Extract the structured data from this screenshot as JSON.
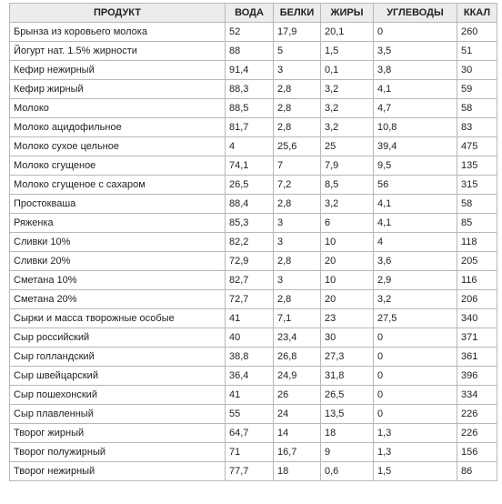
{
  "table": {
    "header": [
      "ПРОДУКТ",
      "ВОДА",
      "БЕЛКИ",
      "ЖИРЫ",
      "УГЛЕВОДЫ",
      "ККАЛ"
    ],
    "rows": [
      [
        "Брынза из коровьего молока",
        "52",
        "17,9",
        "20,1",
        "0",
        "260"
      ],
      [
        "Йогурт нат. 1.5% жирности",
        "88",
        "5",
        "1,5",
        "3,5",
        "51"
      ],
      [
        "Кефир нежирный",
        "91,4",
        "3",
        "0,1",
        "3,8",
        "30"
      ],
      [
        "Кефир жирный",
        "88,3",
        "2,8",
        "3,2",
        "4,1",
        "59"
      ],
      [
        "Молоко",
        "88,5",
        "2,8",
        "3,2",
        "4,7",
        "58"
      ],
      [
        "Молоко ацидофильное",
        "81,7",
        "2,8",
        "3,2",
        "10,8",
        "83"
      ],
      [
        "Молоко сухое цельное",
        "4",
        "25,6",
        "25",
        "39,4",
        "475"
      ],
      [
        "Молоко сгущеное",
        "74,1",
        "7",
        "7,9",
        "9,5",
        "135"
      ],
      [
        "Молоко сгущеное с сахаром",
        "26,5",
        "7,2",
        "8,5",
        "56",
        "315"
      ],
      [
        "Простокваша",
        "88,4",
        "2,8",
        "3,2",
        "4,1",
        "58"
      ],
      [
        "Ряженка",
        "85,3",
        "3",
        "6",
        "4,1",
        "85"
      ],
      [
        "Сливки 10%",
        "82,2",
        "3",
        "10",
        "4",
        "118"
      ],
      [
        "Сливки 20%",
        "72,9",
        "2,8",
        "20",
        "3,6",
        "205"
      ],
      [
        "Сметана 10%",
        "82,7",
        "3",
        "10",
        "2,9",
        "116"
      ],
      [
        "Сметана 20%",
        "72,7",
        "2,8",
        "20",
        "3,2",
        "206"
      ],
      [
        "Сырки и масса творожные особые",
        "41",
        "7,1",
        "23",
        "27,5",
        "340"
      ],
      [
        "Сыр российский",
        "40",
        "23,4",
        "30",
        "0",
        "371"
      ],
      [
        "Сыр голландский",
        "38,8",
        "26,8",
        "27,3",
        "0",
        "361"
      ],
      [
        "Сыр швейцарский",
        "36,4",
        "24,9",
        "31,8",
        "0",
        "396"
      ],
      [
        "Сыр пошехонский",
        "41",
        "26",
        "26,5",
        "0",
        "334"
      ],
      [
        "Сыр плавленный",
        "55",
        "24",
        "13,5",
        "0",
        "226"
      ],
      [
        "Творог жирный",
        "64,7",
        "14",
        "18",
        "1,3",
        "226"
      ],
      [
        "Творог полужирный",
        "71",
        "16,7",
        "9",
        "1,3",
        "156"
      ],
      [
        "Творог нежирный",
        "77,7",
        "18",
        "0,6",
        "1,5",
        "86"
      ]
    ]
  }
}
